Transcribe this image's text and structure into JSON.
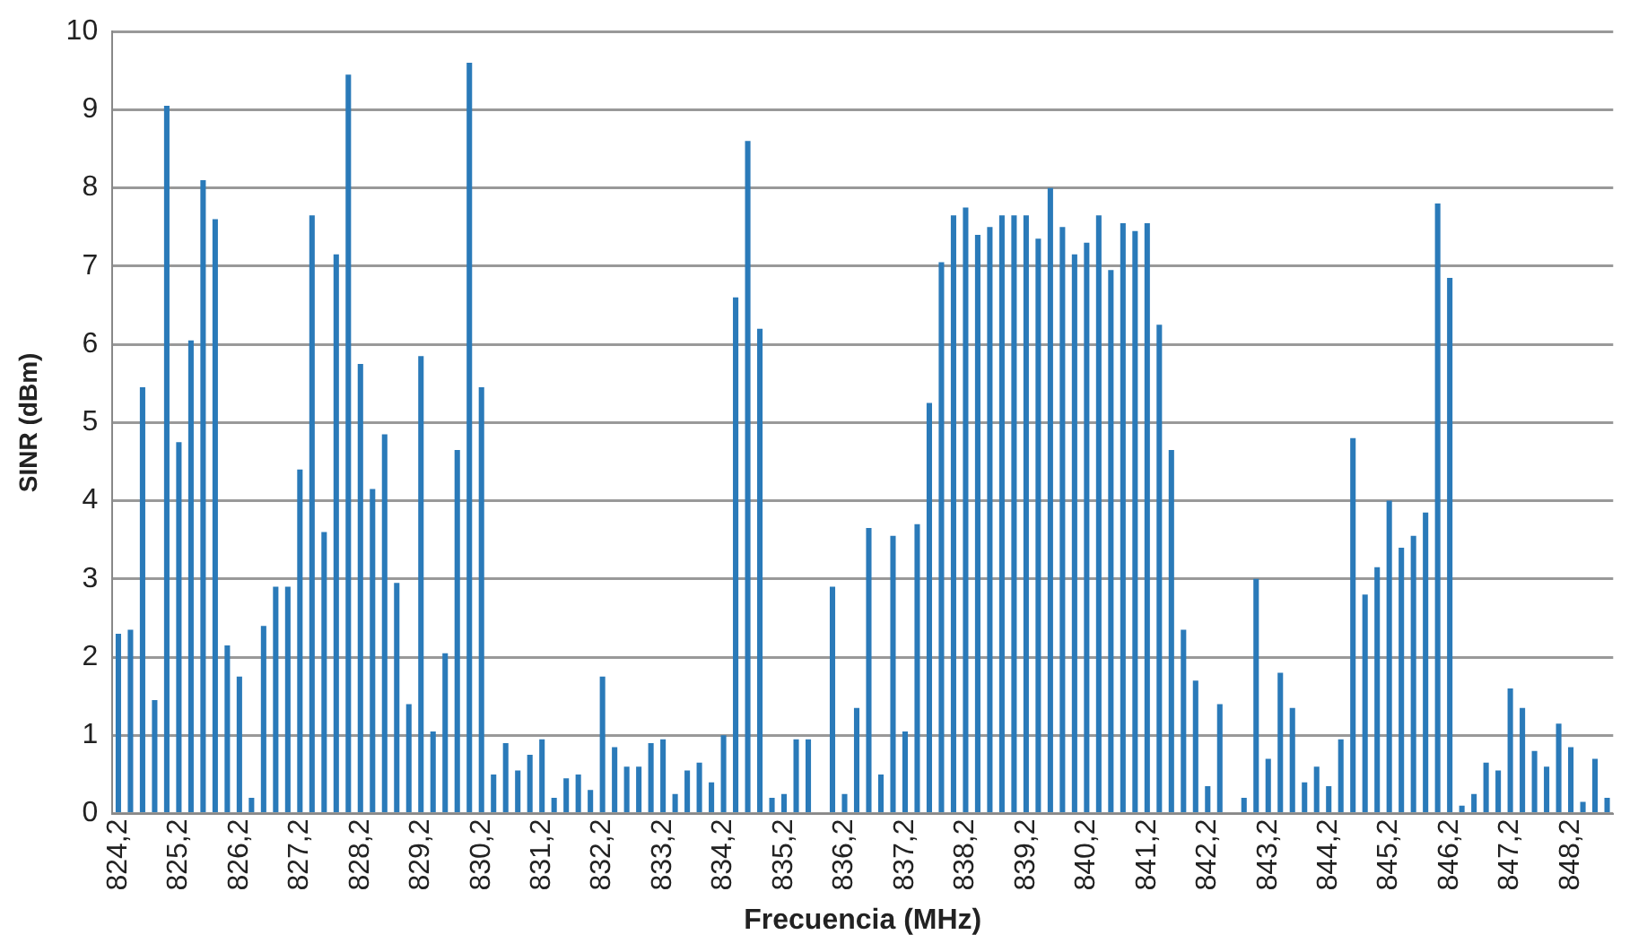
{
  "chart_data": {
    "type": "bar",
    "xlabel": "Frecuencia (MHz)",
    "ylabel": "SINR (dBm)",
    "color": "#2a7ab9",
    "categories": [
      "824,2",
      null,
      null,
      null,
      null,
      "825,2",
      null,
      null,
      null,
      null,
      "826,2",
      null,
      null,
      null,
      null,
      "827,2",
      null,
      null,
      null,
      null,
      "828,2",
      null,
      null,
      null,
      null,
      "829,2",
      null,
      null,
      null,
      null,
      "830,2",
      null,
      null,
      null,
      null,
      "831,2",
      null,
      null,
      null,
      null,
      "832,2",
      null,
      null,
      null,
      null,
      "833,2",
      null,
      null,
      null,
      null,
      "834,2",
      null,
      null,
      null,
      null,
      "835,2",
      null,
      null,
      null,
      null,
      "836,2",
      null,
      null,
      null,
      null,
      "837,2",
      null,
      null,
      null,
      null,
      "838,2",
      null,
      null,
      null,
      null,
      "839,2",
      null,
      null,
      null,
      null,
      "840,2",
      null,
      null,
      null,
      null,
      "841,2",
      null,
      null,
      null,
      null,
      "842,2",
      null,
      null,
      null,
      null,
      "843,2",
      null,
      null,
      null,
      null,
      "844,2",
      null,
      null,
      null,
      null,
      "845,2",
      null,
      null,
      null,
      null,
      "846,2",
      null,
      null,
      null,
      null,
      "847,2",
      null,
      null,
      null,
      null,
      "848,2",
      null,
      null,
      null
    ],
    "values": [
      2.3,
      2.35,
      5.45,
      1.45,
      9.05,
      4.75,
      6.05,
      8.1,
      7.6,
      2.15,
      1.75,
      0.2,
      2.4,
      2.9,
      2.9,
      4.4,
      7.65,
      3.6,
      7.15,
      9.45,
      5.75,
      4.15,
      4.85,
      2.95,
      1.4,
      5.85,
      1.05,
      2.05,
      4.65,
      9.6,
      5.45,
      0.5,
      0.9,
      0.55,
      0.75,
      0.95,
      0.2,
      0.45,
      0.5,
      0.3,
      1.75,
      0.85,
      0.6,
      0.6,
      0.9,
      0.95,
      0.25,
      0.55,
      0.65,
      0.4,
      1.0,
      6.6,
      8.6,
      6.2,
      0.2,
      0.25,
      0.95,
      0.95,
      0,
      2.9,
      0.25,
      1.35,
      3.65,
      0.5,
      3.55,
      1.05,
      3.7,
      5.25,
      7.05,
      7.65,
      7.75,
      7.4,
      7.5,
      7.65,
      7.65,
      7.65,
      7.35,
      8.0,
      7.5,
      7.15,
      7.3,
      7.65,
      6.95,
      7.55,
      7.45,
      7.55,
      6.25,
      4.65,
      2.35,
      1.7,
      0.35,
      1.4,
      0,
      0.2,
      3.0,
      0.7,
      1.8,
      1.35,
      0.4,
      0.6,
      0.35,
      0.95,
      4.8,
      2.8,
      3.15,
      4.0,
      3.4,
      3.55,
      3.85,
      7.8,
      6.85,
      0.1,
      0.25,
      0.65,
      0.55,
      1.6,
      1.35,
      0.8,
      0.6,
      1.15,
      0.85,
      0.15,
      0.7,
      0.2
    ],
    "ylim": [
      0,
      10
    ],
    "yticks": [
      0,
      1,
      2,
      3,
      4,
      5,
      6,
      7,
      8,
      9,
      10
    ],
    "grid": "y"
  }
}
